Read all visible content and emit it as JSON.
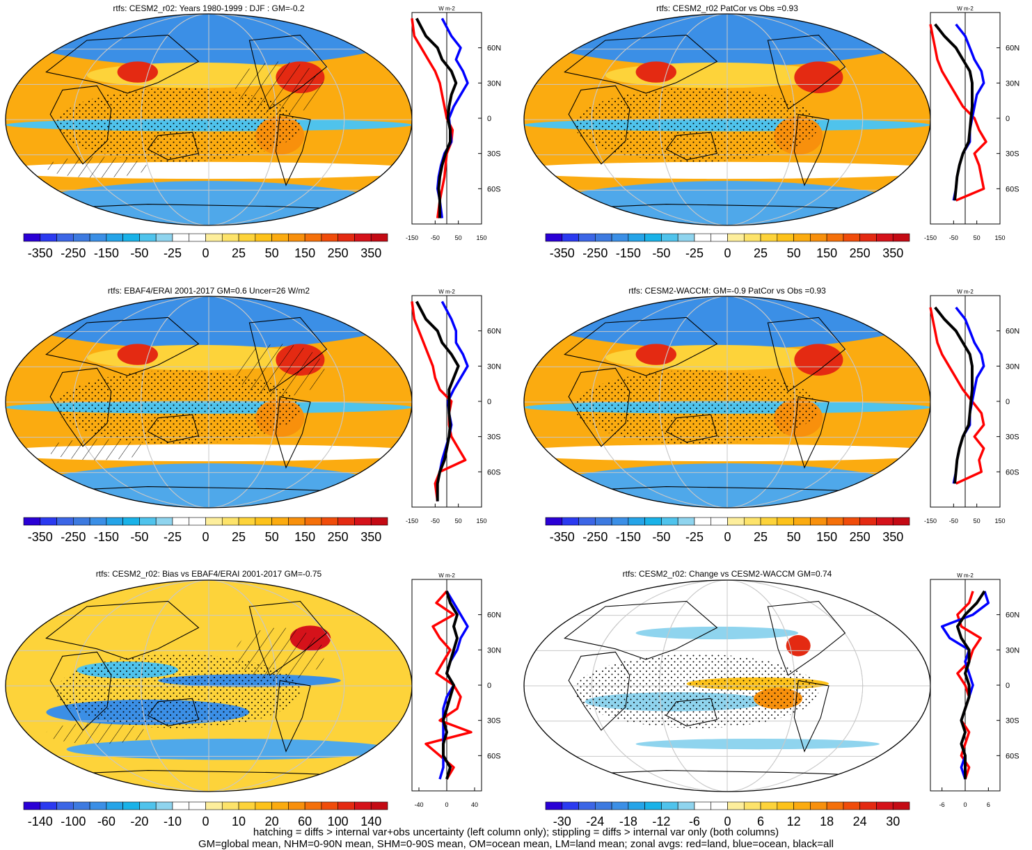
{
  "figure": {
    "footnote_1": "hatching = diffs > internal var+obs uncertainty (left column only); stippling = diffs > internal var only (both columns)",
    "footnote_2": "GM=global mean, NHM=0-90N mean, SHM=0-90S mean, OM=ocean mean, LM=land mean; zonal avgs: red=land, blue=ocean, black=all"
  },
  "colors": {
    "land_line": "#ff0000",
    "ocean_line": "#0000ff",
    "all_line": "#000000"
  },
  "chart_data": [
    {
      "type": "heatmap",
      "panel": "map",
      "title": "rtfs: CESM2_r02: Years 1980-1999 : DJF : GM=-0.2",
      "colorbar_labels": [
        "-350",
        "-250",
        "-150",
        "-50",
        "-25",
        "0",
        "25",
        "50",
        "150",
        "250",
        "350"
      ],
      "colorbar_colors": [
        "#2a00d5",
        "#2b3af0",
        "#3c66e6",
        "#3d7ae0",
        "#3b8fe6",
        "#25a4e8",
        "#19b2e8",
        "#4fc3ec",
        "#8fd4ee",
        "#ffffff",
        "#ffffff",
        "#fdee9c",
        "#fde36a",
        "#fdd33a",
        "#fdc21a",
        "#fbab10",
        "#f8900c",
        "#f5700a",
        "#f04c0a",
        "#e42a12",
        "#d5121a",
        "#c40a14"
      ],
      "stippling": true,
      "hatching": true
    },
    {
      "type": "line",
      "panel": "zonal",
      "unit": "W m-2",
      "xlim": [
        -150,
        150
      ],
      "ylim": [
        -90,
        90
      ],
      "xticks": [
        "-150",
        "-50",
        "50",
        "150"
      ],
      "yticks": [
        "60N",
        "30N",
        "0",
        "30S",
        "60S"
      ],
      "lat": [
        -85,
        -70,
        -60,
        -50,
        -40,
        -30,
        -20,
        -10,
        0,
        10,
        20,
        30,
        40,
        50,
        60,
        70,
        85
      ],
      "series": [
        {
          "key": "land",
          "values": [
            -40,
            -30,
            -20,
            -10,
            -5,
            0,
            20,
            25,
            0,
            -10,
            -20,
            -30,
            -50,
            -80,
            -110,
            -140,
            -150
          ]
        },
        {
          "key": "ocean",
          "values": [
            -20,
            -30,
            -40,
            -35,
            -25,
            -10,
            20,
            15,
            10,
            30,
            60,
            90,
            70,
            40,
            60,
            20,
            -20
          ]
        },
        {
          "key": "all",
          "values": [
            -30,
            -30,
            -35,
            -30,
            -20,
            -5,
            15,
            15,
            5,
            10,
            20,
            40,
            20,
            -20,
            -40,
            -90,
            -130
          ]
        }
      ]
    },
    {
      "type": "heatmap",
      "panel": "map",
      "title": "rtfs: CESM2_r02 PatCor vs Obs =0.93",
      "colorbar_labels": [
        "-350",
        "-250",
        "-150",
        "-50",
        "-25",
        "0",
        "25",
        "50",
        "150",
        "250",
        "350"
      ],
      "stippling": true,
      "hatching": false
    },
    {
      "type": "line",
      "panel": "zonal",
      "unit": "W m-2",
      "xlim": [
        -150,
        150
      ],
      "ylim": [
        -90,
        90
      ],
      "xticks": [
        "-150",
        "-50",
        "50",
        "150"
      ],
      "yticks": [
        "60N",
        "30N",
        "0",
        "30S",
        "60S"
      ],
      "lat": [
        -70,
        -60,
        -50,
        -40,
        -30,
        -20,
        -10,
        0,
        10,
        20,
        30,
        40,
        50,
        60,
        70,
        80
      ],
      "series": [
        {
          "key": "land",
          "values": [
            -40,
            80,
            70,
            60,
            40,
            90,
            60,
            40,
            -10,
            -40,
            -70,
            -100,
            -120,
            -130,
            -140,
            -150
          ]
        },
        {
          "key": "ocean",
          "values": [
            -50,
            -40,
            -35,
            -25,
            -10,
            20,
            20,
            30,
            40,
            50,
            80,
            70,
            40,
            20,
            0,
            -40
          ]
        },
        {
          "key": "all",
          "values": [
            -45,
            -40,
            -35,
            -25,
            -10,
            15,
            20,
            25,
            30,
            30,
            30,
            20,
            -10,
            -40,
            -90,
            -130
          ]
        }
      ]
    },
    {
      "type": "heatmap",
      "panel": "map",
      "title": "rtfs: EBAF4/ERAI 2001-2017 GM=0.6 Uncer=26 W/m2",
      "colorbar_labels": [
        "-350",
        "-250",
        "-150",
        "-50",
        "-25",
        "0",
        "25",
        "50",
        "150",
        "250",
        "350"
      ],
      "stippling": true,
      "hatching": true
    },
    {
      "type": "line",
      "panel": "zonal",
      "unit": "W m-2",
      "xlim": [
        -150,
        150
      ],
      "ylim": [
        -90,
        90
      ],
      "xticks": [
        "-150",
        "-50",
        "50",
        "150"
      ],
      "yticks": [
        "60N",
        "30N",
        "0",
        "30S",
        "60S"
      ],
      "lat": [
        -85,
        -70,
        -60,
        -50,
        -40,
        -30,
        -20,
        -10,
        0,
        10,
        20,
        30,
        40,
        50,
        60,
        70,
        85
      ],
      "series": [
        {
          "key": "land",
          "values": [
            -40,
            -50,
            -30,
            80,
            50,
            20,
            10,
            10,
            20,
            -30,
            -50,
            -60,
            -80,
            -100,
            -120,
            -140,
            -150
          ]
        },
        {
          "key": "ocean",
          "values": [
            -40,
            -40,
            -30,
            -20,
            -5,
            10,
            20,
            10,
            5,
            30,
            60,
            90,
            70,
            40,
            40,
            20,
            -20
          ]
        },
        {
          "key": "all",
          "values": [
            -40,
            -40,
            -30,
            -10,
            0,
            10,
            15,
            10,
            10,
            10,
            30,
            50,
            20,
            -20,
            -40,
            -90,
            -130
          ]
        }
      ]
    },
    {
      "type": "heatmap",
      "panel": "map",
      "title": "rtfs: CESM2-WACCM: GM=-0.9 PatCor vs Obs =0.93",
      "colorbar_labels": [
        "-350",
        "-250",
        "-150",
        "-50",
        "-25",
        "0",
        "25",
        "50",
        "150",
        "250",
        "350"
      ],
      "stippling": true,
      "hatching": false
    },
    {
      "type": "line",
      "panel": "zonal",
      "unit": "W m-2",
      "xlim": [
        -150,
        150
      ],
      "ylim": [
        -90,
        90
      ],
      "xticks": [
        "-150",
        "-50",
        "50",
        "150"
      ],
      "yticks": [
        "60N",
        "30N",
        "0",
        "30S",
        "60S"
      ],
      "lat": [
        -70,
        -60,
        -50,
        -40,
        -30,
        -20,
        -10,
        0,
        10,
        20,
        30,
        40,
        50,
        60,
        70,
        80
      ],
      "series": [
        {
          "key": "land",
          "values": [
            -40,
            70,
            60,
            80,
            40,
            80,
            70,
            30,
            -10,
            -40,
            -70,
            -100,
            -120,
            -130,
            -140,
            -150
          ]
        },
        {
          "key": "ocean",
          "values": [
            -50,
            -40,
            -35,
            -25,
            -10,
            20,
            20,
            30,
            40,
            50,
            80,
            70,
            40,
            20,
            0,
            -40
          ]
        },
        {
          "key": "all",
          "values": [
            -45,
            -40,
            -35,
            -25,
            -10,
            15,
            20,
            25,
            30,
            30,
            30,
            20,
            -10,
            -40,
            -90,
            -130
          ]
        }
      ]
    },
    {
      "type": "heatmap",
      "panel": "map",
      "title": "rtfs: CESM2_r02: Bias vs EBAF4/ERAI 2001-2017 GM=-0.75",
      "colorbar_labels": [
        "-140",
        "-100",
        "-60",
        "-20",
        "-10",
        "0",
        "10",
        "20",
        "60",
        "100",
        "140"
      ],
      "stippling": true,
      "hatching": true
    },
    {
      "type": "line",
      "panel": "zonal",
      "unit": "W m-2",
      "xlim": [
        -50,
        50
      ],
      "ylim": [
        -90,
        90
      ],
      "xticks": [
        "-40",
        "0",
        "40"
      ],
      "yticks": [
        "60N",
        "30N",
        "0",
        "30S",
        "60S"
      ],
      "lat": [
        -80,
        -70,
        -60,
        -50,
        -40,
        -30,
        -20,
        -10,
        0,
        10,
        20,
        30,
        40,
        50,
        60,
        70,
        80
      ],
      "series": [
        {
          "key": "land",
          "values": [
            0,
            10,
            -10,
            -30,
            35,
            -10,
            15,
            20,
            10,
            -15,
            -5,
            5,
            -10,
            -20,
            10,
            -15,
            0
          ]
        },
        {
          "key": "ocean",
          "values": [
            -10,
            -5,
            -5,
            -5,
            -5,
            -5,
            -5,
            0,
            10,
            0,
            5,
            15,
            20,
            30,
            20,
            10,
            0
          ]
        },
        {
          "key": "all",
          "values": [
            0,
            5,
            -5,
            -5,
            0,
            -5,
            0,
            5,
            10,
            0,
            5,
            10,
            15,
            10,
            15,
            5,
            0
          ]
        }
      ]
    },
    {
      "type": "heatmap",
      "panel": "map",
      "title": "rtfs: CESM2_r02: Change vs CESM2-WACCM GM=0.74",
      "colorbar_labels": [
        "-30",
        "-24",
        "-18",
        "-12",
        "-6",
        "0",
        "6",
        "12",
        "18",
        "24",
        "30"
      ],
      "stippling": true,
      "hatching": false
    },
    {
      "type": "line",
      "panel": "zonal",
      "unit": "W m-2",
      "xlim": [
        -9,
        9
      ],
      "ylim": [
        -90,
        90
      ],
      "xticks": [
        "-6",
        "0",
        "6"
      ],
      "yticks": [
        "60N",
        "30N",
        "0",
        "30S",
        "60S"
      ],
      "lat": [
        -80,
        -70,
        -60,
        -50,
        -40,
        -30,
        -20,
        -10,
        0,
        10,
        20,
        30,
        40,
        50,
        60,
        70,
        80
      ],
      "series": [
        {
          "key": "land",
          "values": [
            0,
            1,
            -1,
            0,
            1,
            -1,
            0,
            1,
            0,
            -2,
            1,
            2,
            4,
            -1,
            -2,
            1,
            2
          ]
        },
        {
          "key": "ocean",
          "values": [
            0,
            -1,
            0,
            -1,
            0,
            -1,
            0,
            1,
            2,
            1,
            0,
            1,
            -4,
            -6,
            2,
            6,
            5
          ]
        },
        {
          "key": "all",
          "values": [
            0,
            0,
            0,
            -1,
            0,
            -1,
            0,
            1,
            1,
            0,
            1,
            1,
            -1,
            -2,
            0,
            3,
            5
          ]
        }
      ]
    }
  ]
}
